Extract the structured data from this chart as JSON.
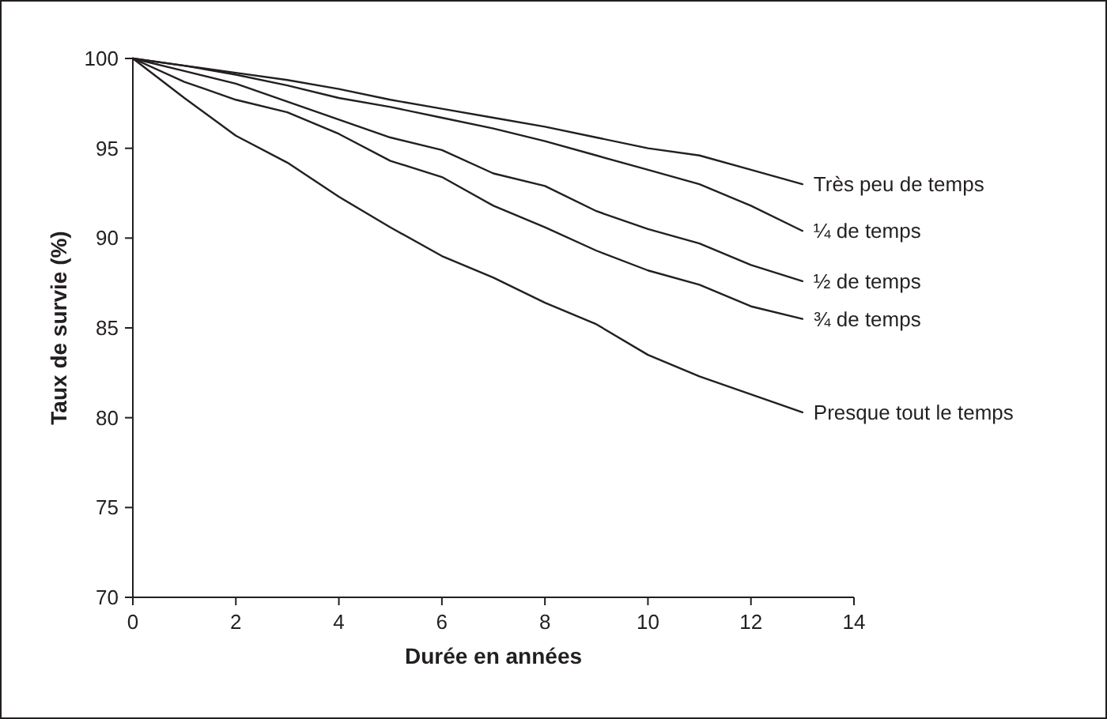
{
  "chart_data": {
    "type": "line",
    "xlabel": "Durée en années",
    "ylabel": "Taux de survie (%)",
    "x": [
      0,
      1,
      2,
      3,
      4,
      5,
      6,
      7,
      8,
      9,
      10,
      11,
      12,
      13
    ],
    "series": [
      {
        "name": "Très peu de temps",
        "color": "#231f20",
        "values": [
          100,
          99.6,
          99.2,
          98.8,
          98.3,
          97.7,
          97.2,
          96.7,
          96.2,
          95.6,
          95.0,
          94.6,
          93.8,
          93.0
        ]
      },
      {
        "name": "¼ de temps",
        "color": "#231f20",
        "values": [
          100,
          99.6,
          99.1,
          98.5,
          97.8,
          97.3,
          96.7,
          96.1,
          95.4,
          94.6,
          93.8,
          93.0,
          91.8,
          90.4
        ]
      },
      {
        "name": "½ de temps",
        "color": "#231f20",
        "values": [
          100,
          99.3,
          98.6,
          97.6,
          96.6,
          95.6,
          94.9,
          93.6,
          92.9,
          91.5,
          90.5,
          89.7,
          88.5,
          87.6
        ]
      },
      {
        "name": "¾ de temps",
        "color": "#231f20",
        "values": [
          100,
          98.7,
          97.7,
          97.0,
          95.8,
          94.3,
          93.4,
          91.8,
          90.6,
          89.3,
          88.2,
          87.4,
          86.2,
          85.5
        ]
      },
      {
        "name": "Presque tout le temps",
        "color": "#231f20",
        "values": [
          100,
          97.8,
          95.7,
          94.2,
          92.3,
          90.6,
          89.0,
          87.8,
          86.4,
          85.2,
          83.5,
          82.3,
          81.3,
          80.3
        ]
      }
    ],
    "xlim": [
      0,
      14
    ],
    "xticks": [
      0,
      2,
      4,
      6,
      8,
      10,
      12,
      14
    ],
    "ylim": [
      70,
      100
    ],
    "yticks": [
      70,
      75,
      80,
      85,
      90,
      95,
      100
    ],
    "grid": false,
    "legend": false,
    "marker": "none",
    "line_style": "solid"
  }
}
